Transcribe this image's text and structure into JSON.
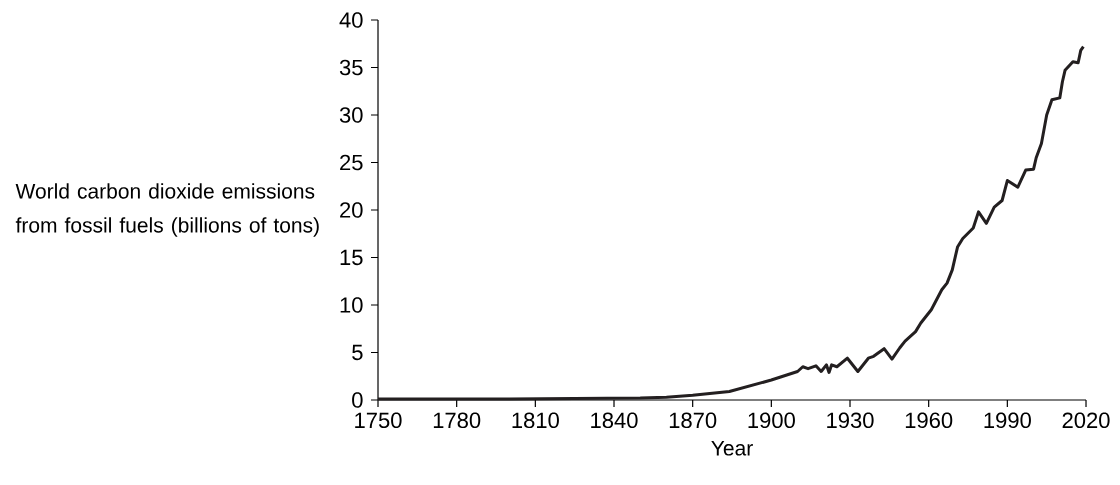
{
  "chart_data": {
    "type": "line",
    "xlabel": "Year",
    "ylabel": "World carbon dioxide emissions from fossil fuels (billions of tons)",
    "xlim": [
      1750,
      2020
    ],
    "xticks": [
      1750,
      1780,
      1810,
      1840,
      1870,
      1900,
      1930,
      1960,
      1990,
      2020
    ],
    "ylim": [
      0,
      40
    ],
    "yticks": [
      0,
      5,
      10,
      15,
      20,
      25,
      30,
      35,
      40
    ],
    "series": [
      {
        "color": "#231f20",
        "x": [
          1750,
          1800,
          1850,
          1860,
          1870,
          1884,
          1900,
          1910,
          1912,
          1914,
          1917,
          1919,
          1921,
          1922,
          1923,
          1925,
          1929,
          1933,
          1937,
          1939,
          1943,
          1946,
          1949,
          1951,
          1955,
          1957,
          1961,
          1965,
          1967,
          1969,
          1971,
          1973,
          1977,
          1979,
          1982,
          1985,
          1988,
          1990,
          1994,
          1997,
          2000,
          2001,
          2003,
          2005,
          2007,
          2010,
          2011,
          2012,
          2015,
          2017,
          2018,
          2019
        ],
        "values": [
          0.1,
          0.1,
          0.2,
          0.3,
          0.5,
          0.9,
          2.1,
          3.0,
          3.5,
          3.3,
          3.6,
          3.0,
          3.7,
          2.9,
          3.7,
          3.5,
          4.4,
          3.0,
          4.4,
          4.6,
          5.4,
          4.3,
          5.5,
          6.2,
          7.2,
          8.1,
          9.5,
          11.6,
          12.3,
          13.7,
          16.1,
          17.0,
          18.1,
          19.8,
          18.6,
          20.3,
          21.0,
          23.1,
          22.4,
          24.2,
          24.3,
          25.5,
          27.0,
          30.0,
          31.6,
          31.8,
          33.5,
          34.7,
          35.6,
          35.5,
          36.8,
          37.2
        ]
      }
    ]
  }
}
